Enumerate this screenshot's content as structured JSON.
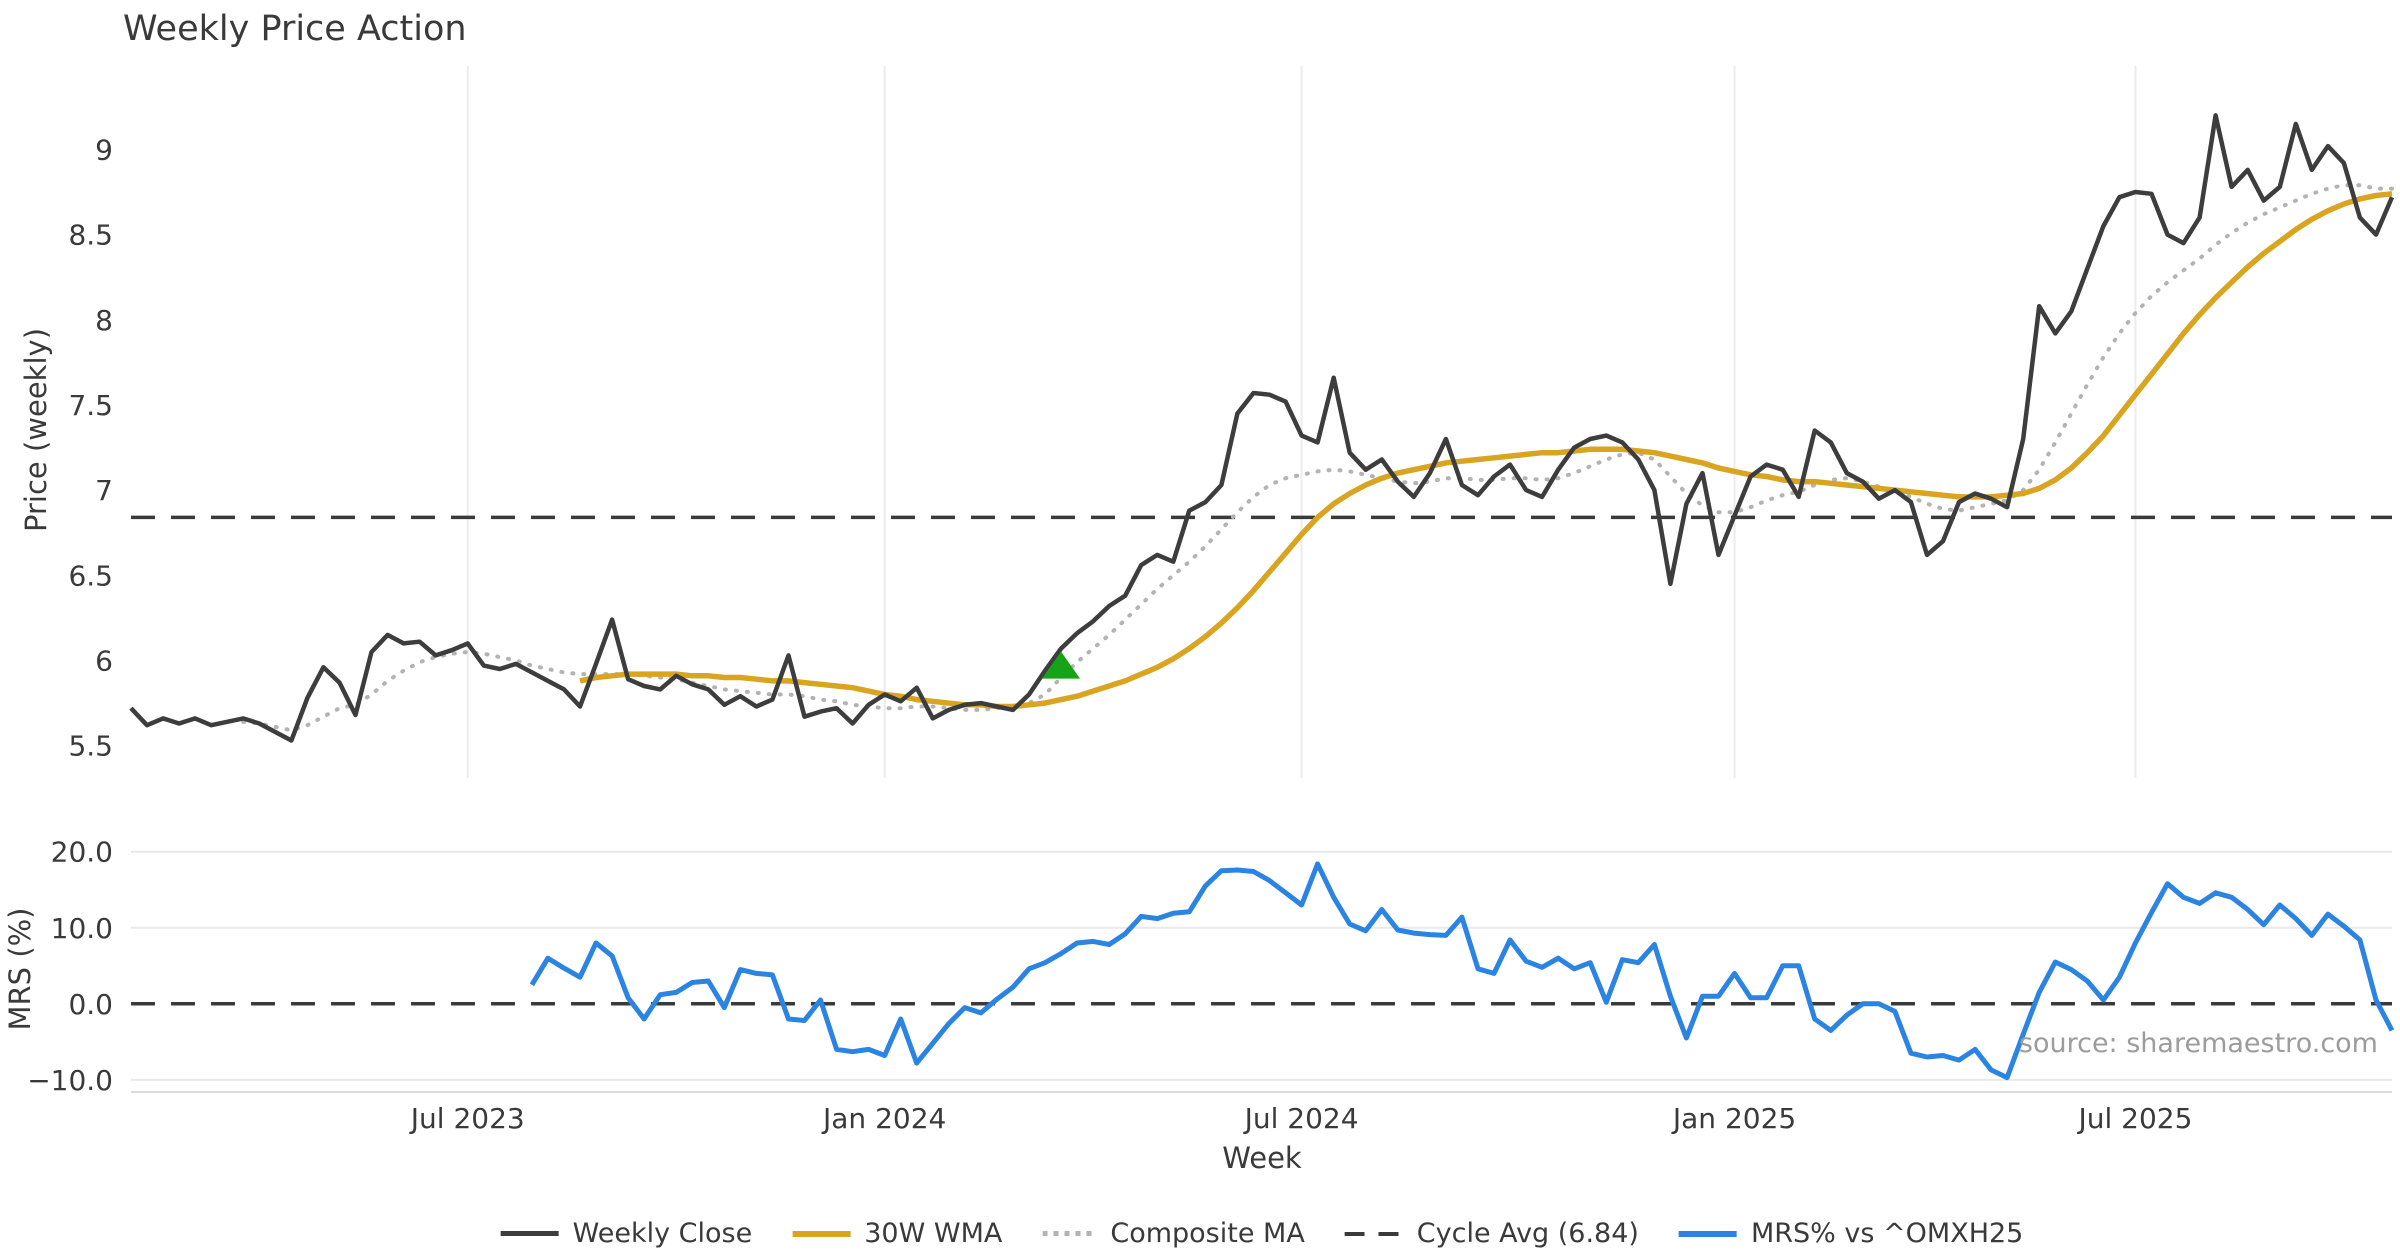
{
  "title": "Weekly Price Action",
  "source_note": "source: sharemaestro.com",
  "colors": {
    "weekly_close": "#3d3d3d",
    "wma_30w": "#d9a521",
    "composite_ma": "#b3b3b3",
    "cycle_avg": "#3a3a3a",
    "mrs": "#2b84e2",
    "buy_marker": "#17a317",
    "grid": "#ececec",
    "text": "#3a3a3a",
    "source_text": "#9c9c9c"
  },
  "legend": [
    {
      "label": "Weekly Close",
      "style": "solid",
      "color": "#3d3d3d"
    },
    {
      "label": "30W WMA",
      "style": "solid",
      "color": "#d9a521"
    },
    {
      "label": "Composite MA",
      "style": "dotted",
      "color": "#b3b3b3"
    },
    {
      "label": "Cycle Avg (6.84)",
      "style": "dashed",
      "color": "#3a3a3a"
    },
    {
      "label": "MRS% vs ^OMXH25",
      "style": "solid",
      "color": "#2b84e2"
    }
  ],
  "chart_data": {
    "type": "line",
    "x_axis": {
      "label": "Week",
      "unit": "week_index",
      "n_weeks": 142,
      "range_note": "weekly data, ~Feb 2023 to ~Nov 2025",
      "ticks": [
        {
          "week": 21,
          "label": "Jul 2023"
        },
        {
          "week": 47,
          "label": "Jan 2024"
        },
        {
          "week": 73,
          "label": "Jul 2024"
        },
        {
          "week": 100,
          "label": "Jan 2025"
        },
        {
          "week": 125,
          "label": "Jul 2025"
        }
      ]
    },
    "panels": [
      {
        "name": "price",
        "ylabel": "Price (weekly)",
        "ylim": [
          5.31,
          9.49
        ],
        "grid": "vertical",
        "yticks": [
          {
            "v": 5.5,
            "label": "5.5"
          },
          {
            "v": 6.0,
            "label": "6"
          },
          {
            "v": 6.5,
            "label": "6.5"
          },
          {
            "v": 7.0,
            "label": "7"
          },
          {
            "v": 7.5,
            "label": "7.5"
          },
          {
            "v": 8.0,
            "label": "8"
          },
          {
            "v": 8.5,
            "label": "8.5"
          },
          {
            "v": 9.0,
            "label": "9"
          }
        ],
        "reference_lines": [
          {
            "name": "Cycle Avg (6.84)",
            "value": 6.84,
            "style": "dashed",
            "color": "#3a3a3a"
          }
        ],
        "markers": [
          {
            "name": "buy-signal",
            "shape": "triangle-up",
            "color": "#17a317",
            "week": 58,
            "value": 5.97
          }
        ],
        "series": [
          {
            "name": "Weekly Close",
            "color": "#3d3d3d",
            "style": "solid",
            "width": 4.5,
            "start_week": 0,
            "values": [
              5.72,
              5.62,
              5.66,
              5.63,
              5.66,
              5.62,
              5.64,
              5.66,
              5.63,
              5.58,
              5.53,
              5.78,
              5.96,
              5.87,
              5.68,
              6.05,
              6.15,
              6.1,
              6.11,
              6.03,
              6.06,
              6.1,
              5.97,
              5.95,
              5.98,
              5.93,
              5.88,
              5.83,
              5.73,
              5.98,
              6.24,
              5.89,
              5.85,
              5.83,
              5.91,
              5.86,
              5.83,
              5.74,
              5.79,
              5.73,
              5.77,
              6.03,
              5.67,
              5.7,
              5.72,
              5.63,
              5.74,
              5.8,
              5.76,
              5.84,
              5.66,
              5.71,
              5.74,
              5.75,
              5.73,
              5.71,
              5.8,
              5.94,
              6.07,
              6.16,
              6.23,
              6.32,
              6.38,
              6.56,
              6.62,
              6.58,
              6.88,
              6.93,
              7.03,
              7.45,
              7.57,
              7.56,
              7.52,
              7.32,
              7.28,
              7.66,
              7.22,
              7.12,
              7.18,
              7.05,
              6.96,
              7.1,
              7.3,
              7.03,
              6.97,
              7.08,
              7.15,
              7.0,
              6.96,
              7.12,
              7.25,
              7.3,
              7.32,
              7.28,
              7.18,
              7.0,
              6.45,
              6.92,
              7.1,
              6.62,
              6.85,
              7.08,
              7.15,
              7.12,
              6.96,
              7.35,
              7.28,
              7.1,
              7.05,
              6.95,
              7.0,
              6.93,
              6.62,
              6.7,
              6.93,
              6.98,
              6.95,
              6.9,
              7.3,
              8.08,
              7.92,
              8.05,
              8.3,
              8.55,
              8.72,
              8.75,
              8.74,
              8.5,
              8.45,
              8.6,
              9.2,
              8.78,
              8.88,
              8.7,
              8.78,
              9.15,
              8.88,
              9.02,
              8.92,
              8.6,
              8.5,
              8.72
            ]
          },
          {
            "name": "30W WMA",
            "color": "#d9a521",
            "style": "solid",
            "width": 5.5,
            "start_week": 28,
            "values": [
              5.88,
              5.9,
              5.91,
              5.92,
              5.92,
              5.92,
              5.92,
              5.91,
              5.91,
              5.9,
              5.9,
              5.89,
              5.88,
              5.88,
              5.87,
              5.86,
              5.85,
              5.84,
              5.82,
              5.8,
              5.79,
              5.77,
              5.76,
              5.75,
              5.74,
              5.74,
              5.73,
              5.73,
              5.74,
              5.75,
              5.77,
              5.79,
              5.82,
              5.85,
              5.88,
              5.92,
              5.96,
              6.01,
              6.07,
              6.14,
              6.22,
              6.31,
              6.41,
              6.52,
              6.63,
              6.74,
              6.84,
              6.92,
              6.98,
              7.03,
              7.07,
              7.1,
              7.12,
              7.14,
              7.16,
              7.17,
              7.18,
              7.19,
              7.2,
              7.21,
              7.22,
              7.22,
              7.23,
              7.24,
              7.24,
              7.24,
              7.23,
              7.22,
              7.2,
              7.18,
              7.16,
              7.13,
              7.11,
              7.09,
              7.08,
              7.06,
              7.05,
              7.05,
              7.04,
              7.03,
              7.02,
              7.01,
              7.0,
              6.99,
              6.98,
              6.97,
              6.96,
              6.96,
              6.96,
              6.97,
              6.98,
              7.01,
              7.06,
              7.13,
              7.22,
              7.32,
              7.44,
              7.56,
              7.68,
              7.8,
              7.92,
              8.03,
              8.13,
              8.22,
              8.31,
              8.39,
              8.46,
              8.53,
              8.59,
              8.64,
              8.68,
              8.71,
              8.73,
              8.74
            ]
          },
          {
            "name": "Composite MA",
            "color": "#b3b3b3",
            "style": "dotted",
            "width": 4,
            "start_week": 7,
            "values": [
              5.64,
              5.63,
              5.61,
              5.59,
              5.62,
              5.67,
              5.72,
              5.74,
              5.8,
              5.88,
              5.94,
              5.99,
              6.02,
              6.04,
              6.05,
              6.04,
              6.02,
              6.0,
              5.97,
              5.95,
              5.93,
              5.92,
              5.92,
              5.92,
              5.92,
              5.91,
              5.9,
              5.89,
              5.87,
              5.85,
              5.83,
              5.82,
              5.81,
              5.8,
              5.8,
              5.79,
              5.77,
              5.76,
              5.74,
              5.73,
              5.72,
              5.72,
              5.73,
              5.73,
              5.72,
              5.71,
              5.71,
              5.72,
              5.73,
              5.75,
              5.8,
              5.9,
              5.99,
              6.07,
              6.15,
              6.24,
              6.33,
              6.42,
              6.5,
              6.58,
              6.67,
              6.77,
              6.87,
              6.96,
              7.03,
              7.07,
              7.09,
              7.11,
              7.12,
              7.11,
              7.09,
              7.07,
              7.05,
              7.04,
              7.05,
              7.07,
              7.07,
              7.06,
              7.06,
              7.07,
              7.07,
              7.06,
              7.07,
              7.1,
              7.14,
              7.18,
              7.21,
              7.22,
              7.18,
              7.08,
              6.98,
              6.91,
              6.87,
              6.87,
              6.9,
              6.94,
              6.97,
              6.99,
              7.03,
              7.06,
              7.07,
              7.05,
              7.02,
              6.99,
              6.96,
              6.92,
              6.89,
              6.88,
              6.9,
              6.92,
              6.94,
              7.0,
              7.12,
              7.28,
              7.45,
              7.62,
              7.78,
              7.92,
              8.04,
              8.14,
              8.22,
              8.29,
              8.36,
              8.44,
              8.51,
              8.57,
              8.62,
              8.66,
              8.7,
              8.74,
              8.77,
              8.79,
              8.79,
              8.77,
              8.77
            ]
          }
        ]
      },
      {
        "name": "mrs",
        "ylabel": "MRS (%)",
        "ylim": [
          -11.6,
          22.2
        ],
        "grid": "horizontal",
        "yticks": [
          {
            "v": 20,
            "label": "20.0"
          },
          {
            "v": 10,
            "label": "10.0"
          },
          {
            "v": 0,
            "label": "0.0"
          },
          {
            "v": -10,
            "label": "−10.0"
          }
        ],
        "reference_lines": [
          {
            "name": "zero",
            "value": 0,
            "style": "dashed",
            "color": "#3a3a3a"
          }
        ],
        "series": [
          {
            "name": "MRS% vs ^OMXH25",
            "color": "#2b84e2",
            "style": "solid",
            "width": 5,
            "start_week": 25,
            "values": [
              2.5,
              6.0,
              4.7,
              3.5,
              8.0,
              6.3,
              0.8,
              -2.0,
              1.2,
              1.5,
              2.8,
              3.0,
              -0.5,
              4.5,
              4.0,
              3.8,
              -2.0,
              -2.2,
              0.5,
              -6.0,
              -6.3,
              -6.0,
              -6.8,
              -2.0,
              -7.8,
              -5.2,
              -2.6,
              -0.5,
              -1.2,
              0.6,
              2.2,
              4.6,
              5.4,
              6.6,
              8.0,
              8.2,
              7.8,
              9.2,
              11.5,
              11.2,
              11.9,
              12.1,
              15.5,
              17.5,
              17.6,
              17.4,
              16.2,
              14.6,
              13.0,
              18.4,
              14.0,
              10.5,
              9.6,
              12.4,
              9.7,
              9.3,
              9.1,
              9.0,
              11.4,
              4.6,
              4.0,
              8.4,
              5.6,
              4.8,
              6.0,
              4.6,
              5.4,
              0.2,
              5.8,
              5.4,
              7.8,
              1.0,
              -4.5,
              1.0,
              1.0,
              4.0,
              0.8,
              0.8,
              5.0,
              5.0,
              -2.0,
              -3.5,
              -1.5,
              0.0,
              0.0,
              -1.0,
              -6.5,
              -7.0,
              -6.8,
              -7.4,
              -6.0,
              -8.7,
              -9.7,
              -4.0,
              1.5,
              5.5,
              4.5,
              3.0,
              0.5,
              3.5,
              8.0,
              12.0,
              15.8,
              14.0,
              13.2,
              14.6,
              14.0,
              12.4,
              10.4,
              13.0,
              11.2,
              9.0,
              11.8,
              10.2,
              8.4,
              0.5,
              -3.5
            ]
          }
        ]
      }
    ]
  }
}
